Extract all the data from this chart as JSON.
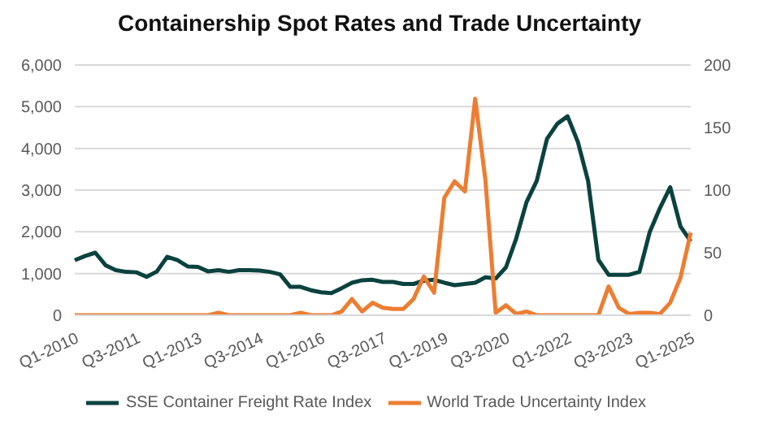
{
  "chart_data": {
    "type": "line",
    "title": "Containership Spot Rates and Trade Uncertainty",
    "categories": [
      "Q1-2010",
      null,
      null,
      null,
      null,
      null,
      "Q3-2011",
      null,
      null,
      null,
      null,
      null,
      "Q1-2013",
      null,
      null,
      null,
      null,
      null,
      "Q3-2014",
      null,
      null,
      null,
      null,
      null,
      "Q1-2016",
      null,
      null,
      null,
      null,
      null,
      "Q3-2017",
      null,
      null,
      null,
      null,
      null,
      "Q1-2019",
      null,
      null,
      null,
      null,
      null,
      "Q3-2020",
      null,
      null,
      null,
      null,
      null,
      "Q1-2022",
      null,
      null,
      null,
      null,
      null,
      "Q3-2023",
      null,
      null,
      null,
      null,
      null,
      "Q1-2025"
    ],
    "series": [
      {
        "name": "SSE Container Freight Rate Index",
        "color": "#0b423f",
        "values": [
          1320,
          1420,
          1500,
          1200,
          1080,
          1040,
          1030,
          920,
          1050,
          1400,
          1320,
          1170,
          1160,
          1050,
          1080,
          1040,
          1080,
          1080,
          1070,
          1040,
          980,
          680,
          680,
          600,
          550,
          530,
          650,
          780,
          840,
          850,
          800,
          800,
          750,
          750,
          830,
          850,
          780,
          720,
          750,
          780,
          910,
          880,
          1150,
          1840,
          2710,
          3220,
          4230,
          4590,
          4770,
          4160,
          3220,
          1330,
          970,
          970,
          970,
          1040,
          1990,
          2570,
          3070,
          2130,
          1770
        ]
      },
      {
        "name": "World Trade Uncertainty Index",
        "color": "#ed7d31",
        "axis": "y2",
        "values": [
          0,
          0,
          0,
          0,
          0,
          0,
          0,
          0,
          0,
          0,
          0,
          0,
          0,
          0,
          2,
          0,
          0,
          0,
          0,
          0,
          0,
          0,
          2,
          0,
          0,
          0,
          3,
          13,
          3,
          10,
          6,
          5,
          5,
          13,
          31,
          18,
          94,
          107,
          99,
          173,
          108,
          2,
          8,
          1,
          3,
          0,
          0,
          0,
          0,
          0,
          0,
          0,
          23,
          6,
          1,
          2,
          2,
          1,
          10,
          30,
          66
        ]
      }
    ],
    "ylim": [
      0,
      6000
    ],
    "yticks": [
      0,
      {
        "value": 1000,
        "label": "1,000"
      },
      {
        "value": 2000,
        "label": "2,000"
      },
      {
        "value": 3000,
        "label": "3,000"
      },
      {
        "value": 4000,
        "label": "4,000"
      },
      {
        "value": 5000,
        "label": "5,000"
      },
      {
        "value": 6000,
        "label": "6,000"
      }
    ],
    "y2lim": [
      0,
      200
    ],
    "y2ticks": [
      0,
      50,
      100,
      150,
      200
    ],
    "grid": "y",
    "legend": "bottom",
    "marker": "none",
    "line_style": "solid"
  }
}
